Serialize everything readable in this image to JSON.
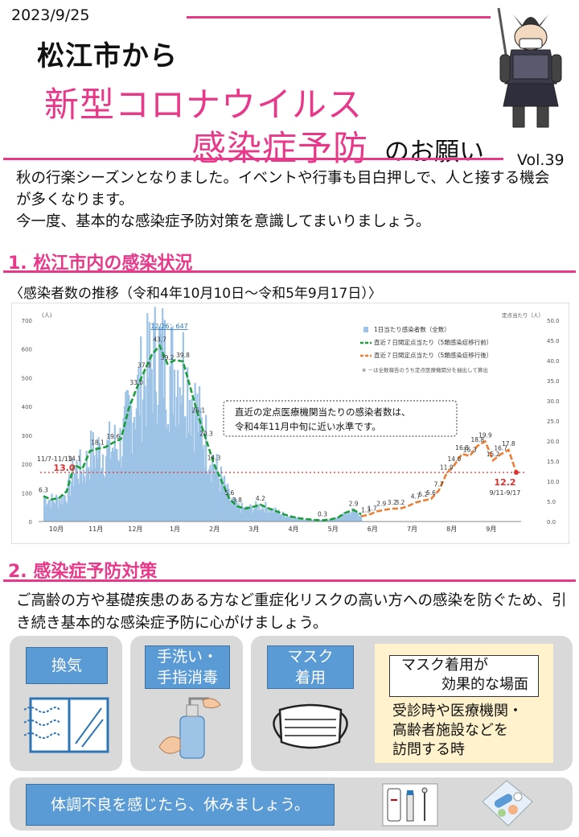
{
  "header": {
    "date": "2023/9/25",
    "line1": "松江市から",
    "line2": "新型コロナウイルス",
    "line3_pink": "感染症予防",
    "line3_black": "のお願い",
    "volume": "Vol.39"
  },
  "intro": {
    "p1": "秋の行楽シーズンとなりました。イベントや行事も目白押しで、人と接する機会が多くなります。",
    "p2": "今一度、基本的な感染症予防対策を意識してまいりましょう。"
  },
  "section1": {
    "title": "1. 松江市内の感染状況",
    "caption": "〈感染者数の推移（令和4年10月10日～令和5年9月17日）〉"
  },
  "chart_data": {
    "type": "bar",
    "left_axis_unit": "(人)",
    "right_axis_unit": "定点当たり（人）",
    "left_ticks": [
      "700",
      "600",
      "500",
      "400",
      "300",
      "200",
      "100",
      "0"
    ],
    "right_ticks": [
      "50.0",
      "45.0",
      "40.0",
      "35.0",
      "30.0",
      "25.0",
      "20.0",
      "15.0",
      "10.0",
      "5.0",
      "0.0"
    ],
    "x_months": [
      "10月",
      "11月",
      "12月",
      "1月",
      "2月",
      "3月",
      "4月",
      "5月",
      "6月",
      "7月",
      "8月",
      "9月"
    ],
    "legend": [
      {
        "label": "1日当たり感染者数（全数）",
        "color": "#9dc3e6"
      },
      {
        "label": "直近７日間定点当たり（5類感染症移行前）",
        "color": "#1a9e3b"
      },
      {
        "label": "直近７日間定点当たり（5類感染症移行後）",
        "color": "#ed7d31"
      }
    ],
    "legend_note": "※ －は全数報告のうち定点医療機関分を抽出して算出",
    "peak_label": "12/26：647",
    "ref_label_left": "11/7-11/13",
    "ref_value_left": "13.0",
    "ref_label_right": "9/11-9/17",
    "ref_value_right": "12.2",
    "annotation": "直近の定点医療機関当たりの感染者数は、令和4年11月中旬に近い水準です。",
    "series_pre": {
      "name": "直近７日間定点当たり（5類感染症移行前）",
      "points": [
        [
          0,
          6.3
        ],
        [
          1,
          5.5
        ],
        [
          2,
          5.8
        ],
        [
          3,
          7.5
        ],
        [
          4,
          14.1
        ],
        [
          5,
          13.0
        ],
        [
          6,
          17.5
        ],
        [
          7,
          18.1
        ],
        [
          8,
          18.5
        ],
        [
          9,
          19.6
        ],
        [
          10,
          20.5
        ],
        [
          11,
          28
        ],
        [
          12,
          33.0
        ],
        [
          13,
          37.3
        ],
        [
          14,
          41.5
        ],
        [
          15,
          43.7
        ],
        [
          16,
          39.2
        ],
        [
          17,
          40.1
        ],
        [
          18,
          39.8
        ],
        [
          19,
          33
        ],
        [
          20,
          26.1
        ],
        [
          21,
          20.3
        ],
        [
          22,
          14.3
        ],
        [
          23,
          10
        ],
        [
          24,
          5.6
        ],
        [
          25,
          3.8
        ],
        [
          26,
          3.2
        ],
        [
          27,
          3.6
        ],
        [
          28,
          4.2
        ],
        [
          29,
          3.3
        ],
        [
          30,
          2.6
        ],
        [
          31,
          1.8
        ],
        [
          32,
          1.2
        ],
        [
          33,
          0.8
        ],
        [
          34,
          0.6
        ],
        [
          35,
          0.4
        ],
        [
          36,
          0.3
        ],
        [
          37,
          0.5
        ],
        [
          38,
          1.0
        ],
        [
          39,
          2.2
        ],
        [
          40,
          2.9
        ],
        [
          41,
          1.8
        ]
      ]
    },
    "series_post": {
      "name": "直近７日間定点当たり（5類感染症移行後）",
      "points": [
        [
          41,
          1.3
        ],
        [
          42,
          1.7
        ],
        [
          43,
          2.5
        ],
        [
          44,
          2.9
        ],
        [
          45,
          3.2
        ],
        [
          46,
          3.2
        ],
        [
          47,
          3.8
        ],
        [
          48,
          4.7
        ],
        [
          49,
          5.2
        ],
        [
          50,
          5.6
        ],
        [
          51,
          7.7
        ],
        [
          52,
          11.9
        ],
        [
          53,
          14.0
        ],
        [
          54,
          16.8
        ],
        [
          55,
          16.3
        ],
        [
          56,
          18.8
        ],
        [
          57,
          19.9
        ],
        [
          58,
          15.2
        ],
        [
          59,
          16.7
        ],
        [
          60,
          17.8
        ],
        [
          61,
          12.2
        ]
      ]
    },
    "point_labels": [
      "6.3",
      "14.1",
      "13.0",
      "18.1",
      "19.6",
      "33.0",
      "37.3",
      "43.7",
      "39.2",
      "39.8",
      "26.1",
      "20.3",
      "14.3",
      "5.6",
      "3.8",
      "4.2",
      "0.3",
      "2.9",
      "1.3",
      "1.7",
      "2.9",
      "3.2",
      "3.2",
      "4.7",
      "5.2",
      "5.6",
      "7.7",
      "11.9",
      "14.0",
      "16.8",
      "16.3",
      "18.8",
      "19.9",
      "15.2",
      "16.7",
      "17.8",
      "12.2"
    ],
    "ylim_left": [
      0,
      700
    ],
    "ylim_right": [
      0,
      50
    ]
  },
  "section2": {
    "title": "2. 感染症予防対策",
    "paragraph": "ご高齢の方や基礎疾患のある方など重症化リスクの高い方への感染を防ぐため、引き続き基本的な感染症予防に心がけましょう。"
  },
  "measures": {
    "ventilation": "換気",
    "handwash_l1": "手洗い・",
    "handwash_l2": "手指消毒",
    "mask_l1": "マスク",
    "mask_l2": "着用",
    "mask_box_l1": "マスク着用が",
    "mask_box_l2": "効果的な場面",
    "mask_scene_l1": "受診時や医療機関・",
    "mask_scene_l2": "高齢者施設などを",
    "mask_scene_l3": "訪問する時",
    "rest": "体調不良を感じたら、休みましょう。"
  },
  "colors": {
    "accent_pink": "#e8388a",
    "box_blue": "#5b9bd5",
    "panel_gray": "#d9d9d9",
    "line_green": "#1a9e3b",
    "line_orange": "#ed7d31"
  }
}
